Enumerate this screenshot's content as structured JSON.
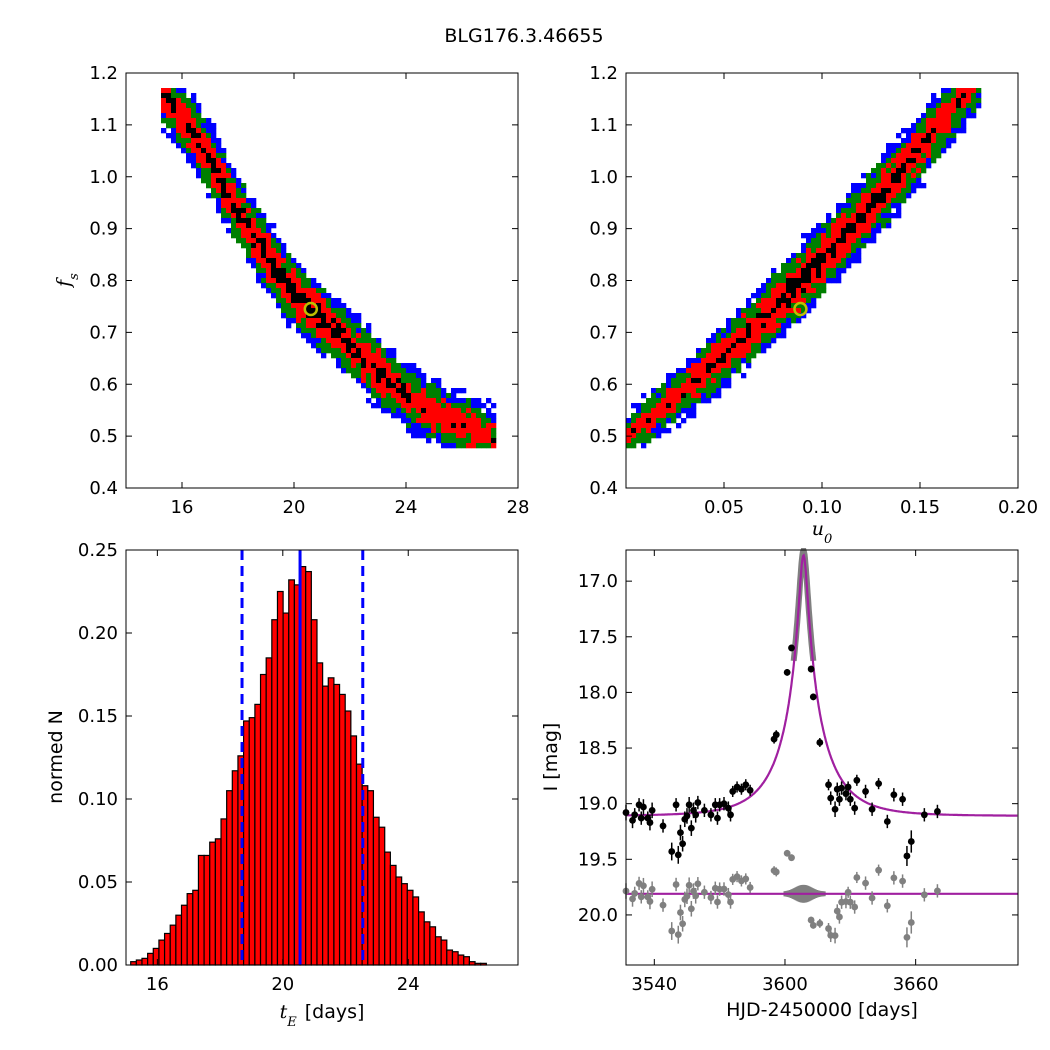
{
  "figure": {
    "title": "BLG176.3.46655"
  },
  "colors": {
    "blue": "#0000ff",
    "green": "#007f00",
    "red": "#ff0000",
    "black": "#000000",
    "marker": "#bfbf00",
    "purple": "#a020a0",
    "gray": "#808080"
  },
  "chart_data": [
    {
      "name": "fs-vs-tE",
      "type": "heatmap",
      "xlim": [
        14,
        28
      ],
      "ylim": [
        0.4,
        1.2
      ],
      "xticks": [
        16,
        20,
        24,
        28
      ],
      "yticks": [
        0.4,
        0.5,
        0.6,
        0.7,
        0.8,
        0.9,
        1.0,
        1.1,
        1.2
      ],
      "xlabel": "",
      "ylabel": "f_s",
      "levels": [
        "black",
        "red",
        "green",
        "blue"
      ],
      "best_fit": {
        "x": 20.6,
        "y": 0.745
      }
    },
    {
      "name": "fs-vs-u0",
      "type": "heatmap",
      "xlim": [
        0.0,
        0.2
      ],
      "ylim": [
        0.4,
        1.2
      ],
      "xticks": [
        0.05,
        0.1,
        0.15,
        0.2
      ],
      "yticks": [
        0.4,
        0.5,
        0.6,
        0.7,
        0.8,
        0.9,
        1.0,
        1.1,
        1.2
      ],
      "xlabel": "u_0",
      "ylabel": "",
      "best_fit": {
        "x": 0.089,
        "y": 0.745
      }
    },
    {
      "name": "tE-histogram",
      "type": "bar",
      "xlim": [
        15,
        27.5
      ],
      "ylim": [
        0,
        0.25
      ],
      "xticks": [
        16,
        20,
        24
      ],
      "yticks": [
        0.0,
        0.05,
        0.1,
        0.15,
        0.2,
        0.25
      ],
      "xlabel": "t_E  [days]",
      "ylabel": "normed N",
      "bin_start": 15.15,
      "bin_width": 0.18,
      "values": [
        0.002,
        0.003,
        0.004,
        0.007,
        0.01,
        0.015,
        0.019,
        0.024,
        0.03,
        0.036,
        0.043,
        0.045,
        0.066,
        0.066,
        0.074,
        0.076,
        0.088,
        0.105,
        0.117,
        0.126,
        0.147,
        0.149,
        0.157,
        0.175,
        0.185,
        0.208,
        0.225,
        0.212,
        0.232,
        0.229,
        0.24,
        0.237,
        0.208,
        0.182,
        0.168,
        0.173,
        0.169,
        0.163,
        0.153,
        0.138,
        0.121,
        0.108,
        0.105,
        0.089,
        0.083,
        0.068,
        0.06,
        0.053,
        0.049,
        0.045,
        0.041,
        0.032,
        0.026,
        0.023,
        0.017,
        0.015,
        0.009,
        0.008,
        0.006,
        0.005,
        0.002,
        0.001,
        0.001
      ],
      "vlines": {
        "median": 20.55,
        "lower": 18.7,
        "upper": 22.55
      }
    },
    {
      "name": "light-curve",
      "type": "scatter",
      "xlim": [
        3527,
        3707
      ],
      "ylim": [
        20.45,
        16.72
      ],
      "xticks": [
        3540,
        3600,
        3660
      ],
      "yticks": [
        17.0,
        17.5,
        18.0,
        18.5,
        19.0,
        19.5,
        20.0
      ],
      "xlabel": "HJD-2450000 [days]",
      "ylabel": "I [mag]",
      "model": {
        "t0": 3608.5,
        "tE": 20.6,
        "u0": 0.089,
        "fs": 0.745,
        "base": 19.11
      },
      "residual_level": 19.81,
      "data_points": [
        [
          3527,
          19.08,
          0.07
        ],
        [
          3530,
          19.15,
          0.07
        ],
        [
          3531,
          19.1,
          0.06
        ],
        [
          3533,
          19.01,
          0.06
        ],
        [
          3534,
          19.13,
          0.06
        ],
        [
          3535,
          19.03,
          0.07
        ],
        [
          3537,
          19.13,
          0.06
        ],
        [
          3538,
          19.17,
          0.07
        ],
        [
          3539,
          19.06,
          0.07
        ],
        [
          3544,
          19.2,
          0.06
        ],
        [
          3548,
          19.43,
          0.08
        ],
        [
          3550,
          19.01,
          0.06
        ],
        [
          3551,
          19.46,
          0.08
        ],
        [
          3552,
          19.26,
          0.07
        ],
        [
          3553,
          19.36,
          0.07
        ],
        [
          3554,
          19.14,
          0.07
        ],
        [
          3555,
          19.11,
          0.07
        ],
        [
          3556,
          19.01,
          0.07
        ],
        [
          3557,
          19.22,
          0.07
        ],
        [
          3558,
          19.06,
          0.07
        ],
        [
          3559,
          19.1,
          0.07
        ],
        [
          3560,
          18.99,
          0.06
        ],
        [
          3563,
          19.06,
          0.06
        ],
        [
          3566,
          19.1,
          0.06
        ],
        [
          3568,
          19.01,
          0.06
        ],
        [
          3569,
          19.13,
          0.06
        ],
        [
          3570,
          19.01,
          0.06
        ],
        [
          3572,
          19.0,
          0.06
        ],
        [
          3574,
          19.04,
          0.06
        ],
        [
          3575,
          19.1,
          0.06
        ],
        [
          3576,
          18.89,
          0.05
        ],
        [
          3578,
          18.85,
          0.05
        ],
        [
          3580,
          18.87,
          0.05
        ],
        [
          3582,
          18.83,
          0.05
        ],
        [
          3584,
          18.88,
          0.05
        ],
        [
          3595,
          18.42,
          0.04
        ],
        [
          3596,
          18.38,
          0.04
        ],
        [
          3601,
          17.82,
          0.03
        ],
        [
          3603,
          17.6,
          0.03
        ],
        [
          3612,
          17.79,
          0.03
        ],
        [
          3613,
          18.04,
          0.03
        ],
        [
          3616,
          18.45,
          0.04
        ],
        [
          3620,
          18.83,
          0.05
        ],
        [
          3621,
          18.95,
          0.06
        ],
        [
          3623,
          19.05,
          0.07
        ],
        [
          3624,
          18.87,
          0.06
        ],
        [
          3625,
          18.96,
          0.06
        ],
        [
          3626,
          18.86,
          0.06
        ],
        [
          3628,
          18.91,
          0.06
        ],
        [
          3629,
          18.85,
          0.05
        ],
        [
          3630,
          18.96,
          0.06
        ],
        [
          3632,
          19.04,
          0.06
        ],
        [
          3633,
          18.79,
          0.05
        ],
        [
          3637,
          18.89,
          0.06
        ],
        [
          3640,
          19.05,
          0.06
        ],
        [
          3643,
          18.82,
          0.05
        ],
        [
          3647,
          19.16,
          0.06
        ],
        [
          3650,
          18.92,
          0.06
        ],
        [
          3654,
          18.96,
          0.06
        ],
        [
          3656,
          19.47,
          0.09
        ],
        [
          3658,
          19.34,
          0.1
        ],
        [
          3664,
          19.1,
          0.06
        ],
        [
          3670,
          19.07,
          0.06
        ]
      ]
    }
  ]
}
